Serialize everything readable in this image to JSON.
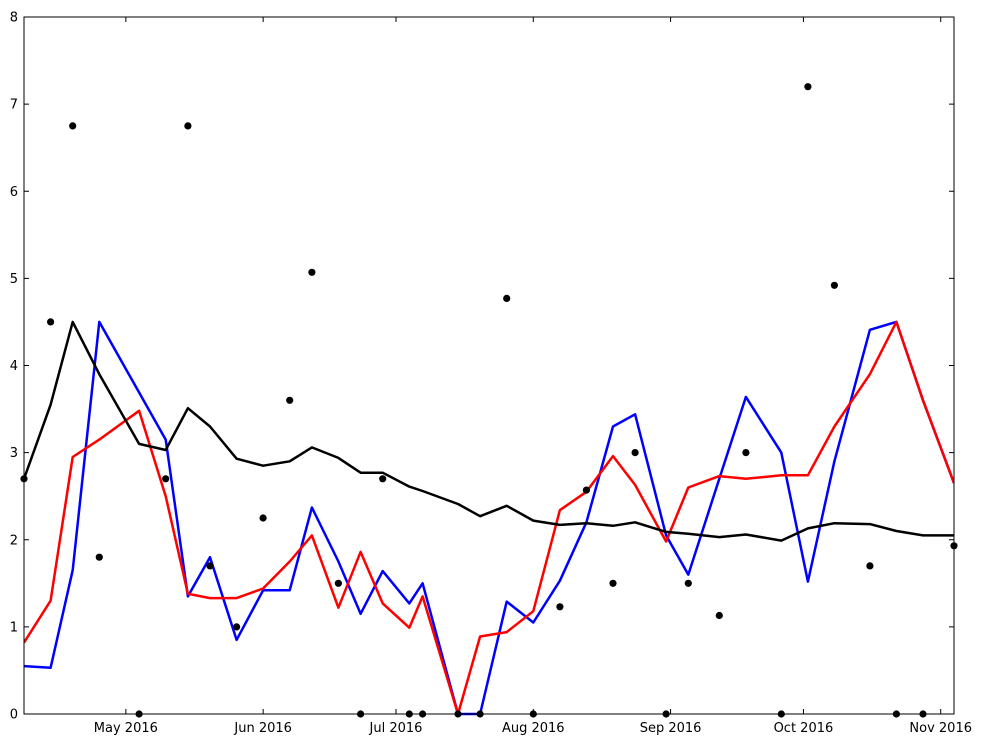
{
  "chart_data": {
    "type": "line",
    "title": "",
    "xlabel": "",
    "ylabel": "",
    "xlim": [
      "2016-04-08",
      "2016-11-04"
    ],
    "ylim": [
      0,
      8
    ],
    "y_ticks": [
      0,
      1,
      2,
      3,
      4,
      5,
      6,
      7,
      8
    ],
    "x_ticks": [
      {
        "date": "2016-05-01",
        "label": "May 2016"
      },
      {
        "date": "2016-06-01",
        "label": "Jun 2016"
      },
      {
        "date": "2016-07-01",
        "label": "Jul 2016"
      },
      {
        "date": "2016-08-01",
        "label": "Aug 2016"
      },
      {
        "date": "2016-09-01",
        "label": "Sep 2016"
      },
      {
        "date": "2016-10-01",
        "label": "Oct 2016"
      },
      {
        "date": "2016-11-01",
        "label": "Nov 2016"
      }
    ],
    "grid": false,
    "legend": "none",
    "scatter": {
      "name": "",
      "color": "#000000",
      "points": [
        {
          "x": "2016-04-08",
          "y": 2.7
        },
        {
          "x": "2016-04-14",
          "y": 4.5
        },
        {
          "x": "2016-04-19",
          "y": 6.75
        },
        {
          "x": "2016-04-25",
          "y": 1.8
        },
        {
          "x": "2016-05-04",
          "y": 0
        },
        {
          "x": "2016-05-10",
          "y": 2.7
        },
        {
          "x": "2016-05-15",
          "y": 6.75
        },
        {
          "x": "2016-05-20",
          "y": 1.7
        },
        {
          "x": "2016-05-26",
          "y": 1.0
        },
        {
          "x": "2016-06-01",
          "y": 2.25
        },
        {
          "x": "2016-06-07",
          "y": 3.6
        },
        {
          "x": "2016-06-12",
          "y": 5.07
        },
        {
          "x": "2016-06-18",
          "y": 1.5
        },
        {
          "x": "2016-06-23",
          "y": 0
        },
        {
          "x": "2016-06-28",
          "y": 2.7
        },
        {
          "x": "2016-07-04",
          "y": 0
        },
        {
          "x": "2016-07-07",
          "y": 0
        },
        {
          "x": "2016-07-15",
          "y": 0
        },
        {
          "x": "2016-07-20",
          "y": 0
        },
        {
          "x": "2016-07-26",
          "y": 4.77
        },
        {
          "x": "2016-08-01",
          "y": 0
        },
        {
          "x": "2016-08-07",
          "y": 1.23
        },
        {
          "x": "2016-08-13",
          "y": 2.57
        },
        {
          "x": "2016-08-19",
          "y": 1.5
        },
        {
          "x": "2016-08-24",
          "y": 3.0
        },
        {
          "x": "2016-08-31",
          "y": 0
        },
        {
          "x": "2016-09-05",
          "y": 1.5
        },
        {
          "x": "2016-09-12",
          "y": 1.13
        },
        {
          "x": "2016-09-18",
          "y": 3.0
        },
        {
          "x": "2016-09-26",
          "y": 0
        },
        {
          "x": "2016-10-02",
          "y": 7.2
        },
        {
          "x": "2016-10-08",
          "y": 4.92
        },
        {
          "x": "2016-10-16",
          "y": 1.7
        },
        {
          "x": "2016-10-22",
          "y": 0
        },
        {
          "x": "2016-10-28",
          "y": 0
        },
        {
          "x": "2016-11-04",
          "y": 1.93
        }
      ]
    },
    "series": [
      {
        "name": "",
        "color": "#0000ff",
        "points": [
          {
            "x": "2016-04-08",
            "y": 0.55
          },
          {
            "x": "2016-04-14",
            "y": 0.53
          },
          {
            "x": "2016-04-19",
            "y": 1.65
          },
          {
            "x": "2016-04-25",
            "y": 4.5
          },
          {
            "x": "2016-05-10",
            "y": 3.15
          },
          {
            "x": "2016-05-15",
            "y": 1.35
          },
          {
            "x": "2016-05-20",
            "y": 1.8
          },
          {
            "x": "2016-05-26",
            "y": 0.85
          },
          {
            "x": "2016-06-01",
            "y": 1.42
          },
          {
            "x": "2016-06-07",
            "y": 1.42
          },
          {
            "x": "2016-06-12",
            "y": 2.37
          },
          {
            "x": "2016-06-18",
            "y": 1.75
          },
          {
            "x": "2016-06-23",
            "y": 1.15
          },
          {
            "x": "2016-06-28",
            "y": 1.64
          },
          {
            "x": "2016-07-04",
            "y": 1.27
          },
          {
            "x": "2016-07-07",
            "y": 1.5
          },
          {
            "x": "2016-07-15",
            "y": 0
          },
          {
            "x": "2016-07-20",
            "y": 0
          },
          {
            "x": "2016-07-26",
            "y": 1.29
          },
          {
            "x": "2016-08-01",
            "y": 1.05
          },
          {
            "x": "2016-08-07",
            "y": 1.53
          },
          {
            "x": "2016-08-13",
            "y": 2.2
          },
          {
            "x": "2016-08-19",
            "y": 3.3
          },
          {
            "x": "2016-08-24",
            "y": 3.44
          },
          {
            "x": "2016-08-31",
            "y": 2.05
          },
          {
            "x": "2016-09-05",
            "y": 1.6
          },
          {
            "x": "2016-09-12",
            "y": 2.7
          },
          {
            "x": "2016-09-18",
            "y": 3.64
          },
          {
            "x": "2016-09-26",
            "y": 3.0
          },
          {
            "x": "2016-10-02",
            "y": 1.52
          },
          {
            "x": "2016-10-08",
            "y": 2.9
          },
          {
            "x": "2016-10-16",
            "y": 4.41
          },
          {
            "x": "2016-10-22",
            "y": 4.5
          },
          {
            "x": "2016-10-28",
            "y": 3.6
          },
          {
            "x": "2016-11-04",
            "y": 2.65
          }
        ]
      },
      {
        "name": "",
        "color": "#ff0000",
        "points": [
          {
            "x": "2016-04-08",
            "y": 0.82
          },
          {
            "x": "2016-04-14",
            "y": 1.3
          },
          {
            "x": "2016-04-19",
            "y": 2.95
          },
          {
            "x": "2016-04-25",
            "y": 3.15
          },
          {
            "x": "2016-05-04",
            "y": 3.48
          },
          {
            "x": "2016-05-10",
            "y": 2.5
          },
          {
            "x": "2016-05-15",
            "y": 1.38
          },
          {
            "x": "2016-05-20",
            "y": 1.33
          },
          {
            "x": "2016-05-26",
            "y": 1.33
          },
          {
            "x": "2016-06-01",
            "y": 1.44
          },
          {
            "x": "2016-06-07",
            "y": 1.75
          },
          {
            "x": "2016-06-12",
            "y": 2.05
          },
          {
            "x": "2016-06-18",
            "y": 1.22
          },
          {
            "x": "2016-06-23",
            "y": 1.86
          },
          {
            "x": "2016-06-28",
            "y": 1.27
          },
          {
            "x": "2016-07-04",
            "y": 0.99
          },
          {
            "x": "2016-07-07",
            "y": 1.35
          },
          {
            "x": "2016-07-15",
            "y": 0
          },
          {
            "x": "2016-07-20",
            "y": 0.89
          },
          {
            "x": "2016-07-26",
            "y": 0.94
          },
          {
            "x": "2016-08-01",
            "y": 1.18
          },
          {
            "x": "2016-08-07",
            "y": 2.34
          },
          {
            "x": "2016-08-13",
            "y": 2.55
          },
          {
            "x": "2016-08-19",
            "y": 2.96
          },
          {
            "x": "2016-08-24",
            "y": 2.63
          },
          {
            "x": "2016-08-31",
            "y": 1.98
          },
          {
            "x": "2016-09-05",
            "y": 2.6
          },
          {
            "x": "2016-09-12",
            "y": 2.73
          },
          {
            "x": "2016-09-18",
            "y": 2.7
          },
          {
            "x": "2016-09-26",
            "y": 2.74
          },
          {
            "x": "2016-10-02",
            "y": 2.74
          },
          {
            "x": "2016-10-08",
            "y": 3.3
          },
          {
            "x": "2016-10-16",
            "y": 3.9
          },
          {
            "x": "2016-10-22",
            "y": 4.5
          },
          {
            "x": "2016-10-28",
            "y": 3.6
          },
          {
            "x": "2016-11-04",
            "y": 2.65
          }
        ]
      },
      {
        "name": "",
        "color": "#000000",
        "points": [
          {
            "x": "2016-04-08",
            "y": 2.7
          },
          {
            "x": "2016-04-14",
            "y": 3.55
          },
          {
            "x": "2016-04-19",
            "y": 4.5
          },
          {
            "x": "2016-04-25",
            "y": 3.9
          },
          {
            "x": "2016-05-04",
            "y": 3.1
          },
          {
            "x": "2016-05-10",
            "y": 3.03
          },
          {
            "x": "2016-05-15",
            "y": 3.51
          },
          {
            "x": "2016-05-20",
            "y": 3.3
          },
          {
            "x": "2016-05-26",
            "y": 2.93
          },
          {
            "x": "2016-06-01",
            "y": 2.85
          },
          {
            "x": "2016-06-07",
            "y": 2.9
          },
          {
            "x": "2016-06-12",
            "y": 3.06
          },
          {
            "x": "2016-06-18",
            "y": 2.94
          },
          {
            "x": "2016-06-23",
            "y": 2.77
          },
          {
            "x": "2016-06-28",
            "y": 2.77
          },
          {
            "x": "2016-07-04",
            "y": 2.61
          },
          {
            "x": "2016-07-07",
            "y": 2.56
          },
          {
            "x": "2016-07-15",
            "y": 2.41
          },
          {
            "x": "2016-07-20",
            "y": 2.27
          },
          {
            "x": "2016-07-26",
            "y": 2.39
          },
          {
            "x": "2016-08-01",
            "y": 2.22
          },
          {
            "x": "2016-08-07",
            "y": 2.17
          },
          {
            "x": "2016-08-13",
            "y": 2.19
          },
          {
            "x": "2016-08-19",
            "y": 2.16
          },
          {
            "x": "2016-08-24",
            "y": 2.2
          },
          {
            "x": "2016-08-31",
            "y": 2.09
          },
          {
            "x": "2016-09-05",
            "y": 2.07
          },
          {
            "x": "2016-09-12",
            "y": 2.03
          },
          {
            "x": "2016-09-18",
            "y": 2.06
          },
          {
            "x": "2016-09-26",
            "y": 1.99
          },
          {
            "x": "2016-10-02",
            "y": 2.13
          },
          {
            "x": "2016-10-08",
            "y": 2.19
          },
          {
            "x": "2016-10-16",
            "y": 2.18
          },
          {
            "x": "2016-10-22",
            "y": 2.1
          },
          {
            "x": "2016-10-28",
            "y": 2.05
          },
          {
            "x": "2016-11-04",
            "y": 2.05
          }
        ]
      }
    ]
  }
}
